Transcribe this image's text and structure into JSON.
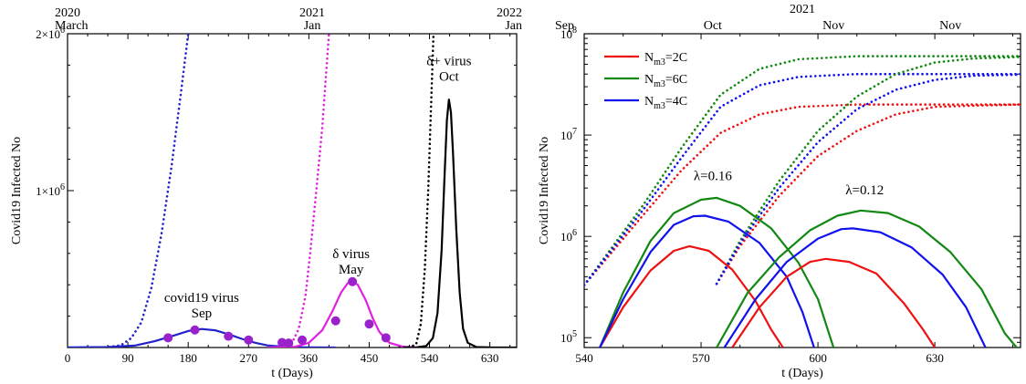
{
  "chart_data": [
    {
      "type": "line",
      "xlabel": "t (Days)",
      "ylabel": "Covid19  Infected  No",
      "xlim": [
        0,
        670
      ],
      "ylim": [
        0,
        2000000
      ],
      "x_ticks": [
        0,
        90,
        180,
        270,
        360,
        450,
        540,
        630
      ],
      "x_tick_labels": [
        "0",
        "90",
        "180",
        "270",
        "360",
        "450",
        "540",
        "630"
      ],
      "y_ticks": [
        1000000,
        2000000
      ],
      "y_tick_labels": [
        "1×10",
        "2×10"
      ],
      "y_tick_exponent": "6",
      "top_axis": [
        {
          "t": 0,
          "year": "2020",
          "month": "March",
          "align": "start"
        },
        {
          "t": 365,
          "year": "2021",
          "month": "Jan",
          "align": "middle"
        },
        {
          "t": 670,
          "year": "2022",
          "month": "Jan",
          "align": "end"
        }
      ],
      "annotations": [
        {
          "id": "covid19",
          "lines": [
            "covid19 virus",
            "Sep"
          ],
          "t": 200,
          "y": 290000
        },
        {
          "id": "delta",
          "lines": [
            "δ virus",
            "May"
          ],
          "t": 423,
          "y": 570000
        },
        {
          "id": "delta-plus",
          "lines": [
            "δ+ virus",
            "Oct"
          ],
          "t": 569,
          "y": 1800000
        }
      ],
      "series": [
        {
          "style": "dotted",
          "color": "#2222cc",
          "points": [
            [
              20,
              1
            ],
            [
              40,
              200
            ],
            [
              60,
              2500
            ],
            [
              80,
              15000
            ],
            [
              95,
              60000
            ],
            [
              110,
              160000
            ],
            [
              125,
              380000
            ],
            [
              140,
              720000
            ],
            [
              155,
              1150000
            ],
            [
              170,
              1650000
            ],
            [
              180,
              2000000
            ]
          ]
        },
        {
          "style": "solid",
          "color": "#2222cc",
          "points": [
            [
              0,
              1200
            ],
            [
              60,
              3000
            ],
            [
              100,
              12000
            ],
            [
              130,
              40000
            ],
            [
              160,
              78000
            ],
            [
              180,
              105000
            ],
            [
              200,
              118000
            ],
            [
              220,
              110000
            ],
            [
              240,
              85000
            ],
            [
              260,
              55000
            ],
            [
              280,
              30000
            ],
            [
              300,
              12000
            ],
            [
              330,
              3000
            ],
            [
              360,
              800
            ],
            [
              400,
              0
            ]
          ]
        },
        {
          "style": "dotted",
          "color": "#e020e0",
          "points": [
            [
              300,
              1
            ],
            [
              320,
              3000
            ],
            [
              335,
              30000
            ],
            [
              345,
              120000
            ],
            [
              355,
              330000
            ],
            [
              362,
              600000
            ],
            [
              370,
              950000
            ],
            [
              380,
              1400000
            ],
            [
              390,
              2000000
            ]
          ]
        },
        {
          "style": "solid",
          "color": "#e020e0",
          "points": [
            [
              300,
              1000
            ],
            [
              340,
              5000
            ],
            [
              360,
              30000
            ],
            [
              380,
              110000
            ],
            [
              395,
              230000
            ],
            [
              408,
              350000
            ],
            [
              418,
              410000
            ],
            [
              425,
              420000
            ],
            [
              433,
              400000
            ],
            [
              445,
              300000
            ],
            [
              455,
              190000
            ],
            [
              465,
              100000
            ],
            [
              480,
              30000
            ],
            [
              500,
              5000
            ],
            [
              520,
              800
            ]
          ]
        },
        {
          "style": "dotted",
          "color": "#000000",
          "points": [
            [
              495,
              1
            ],
            [
              510,
              2000
            ],
            [
              520,
              20000
            ],
            [
              527,
              150000
            ],
            [
              533,
              500000
            ],
            [
              538,
              1000000
            ],
            [
              542,
              1500000
            ],
            [
              546,
              2000000
            ]
          ]
        },
        {
          "style": "solid",
          "color": "#000000",
          "points": [
            [
              500,
              200
            ],
            [
              520,
              1000
            ],
            [
              535,
              10000
            ],
            [
              545,
              60000
            ],
            [
              552,
              220000
            ],
            [
              558,
              620000
            ],
            [
              562,
              1050000
            ],
            [
              566,
              1450000
            ],
            [
              569,
              1580000
            ],
            [
              572,
              1500000
            ],
            [
              575,
              1250000
            ],
            [
              580,
              750000
            ],
            [
              585,
              350000
            ],
            [
              590,
              120000
            ],
            [
              597,
              30000
            ],
            [
              610,
              3000
            ],
            [
              630,
              400
            ],
            [
              670,
              0
            ]
          ]
        }
      ],
      "markers": {
        "color": "#9a22cc",
        "points": [
          [
            150,
            62000
          ],
          [
            190,
            112000
          ],
          [
            240,
            72000
          ],
          [
            270,
            48000
          ],
          [
            320,
            32000
          ],
          [
            330,
            28000
          ],
          [
            350,
            48000
          ],
          [
            400,
            170000
          ],
          [
            425,
            420000
          ],
          [
            450,
            150000
          ],
          [
            475,
            62000
          ]
        ]
      }
    },
    {
      "type": "line",
      "xlabel": "t (Days)",
      "ylabel": "Covid19  Infected  No",
      "xscale": "linear",
      "yscale": "log",
      "xlim": [
        540,
        652
      ],
      "ylim": [
        80000,
        100000000
      ],
      "x_ticks": [
        540,
        570,
        600,
        630
      ],
      "x_tick_labels": [
        "540",
        "570",
        "600",
        "630"
      ],
      "y_ticks": [
        100000,
        1000000,
        10000000,
        100000000
      ],
      "y_tick_labels": [
        "10",
        "10",
        "10",
        "10"
      ],
      "y_tick_exponents": [
        "5",
        "6",
        "7",
        "8"
      ],
      "top_axis_title": "2021",
      "top_axis": [
        {
          "t": 540,
          "month": "Sep",
          "align": "start"
        },
        {
          "t": 573,
          "month": "Oct",
          "align": "middle"
        },
        {
          "t": 604,
          "month": "Nov",
          "align": "middle"
        },
        {
          "t": 634,
          "month": "Nov",
          "align": "middle"
        }
      ],
      "legend": {
        "placement": "top-left",
        "entries": [
          {
            "main": "N",
            "sub": "m3",
            "rest": "=2C",
            "color": "#ee1111"
          },
          {
            "main": "N",
            "sub": "m3",
            "rest": "=6C",
            "color": "#118811"
          },
          {
            "main": "N",
            "sub": "m3",
            "rest": "=4C",
            "color": "#1111ee"
          }
        ]
      },
      "annotations": [
        {
          "text": "λ=0.16",
          "t": 573,
          "y": 3600000
        },
        {
          "text": "λ=0.12",
          "t": 612,
          "y": 2600000
        }
      ],
      "series": [
        {
          "style": "dotted",
          "color": "#ee1111",
          "points": [
            [
              540,
              330000
            ],
            [
              555,
              1600000
            ],
            [
              565,
              4500000
            ],
            [
              575,
              10500000
            ],
            [
              585,
              16000000
            ],
            [
              595,
              19000000
            ],
            [
              610,
              20000000
            ],
            [
              652,
              20000000
            ]
          ]
        },
        {
          "style": "dotted",
          "color": "#118811",
          "points": [
            [
              540,
              330000
            ],
            [
              555,
              2000000
            ],
            [
              565,
              7500000
            ],
            [
              575,
              25000000
            ],
            [
              585,
              45000000
            ],
            [
              595,
              56000000
            ],
            [
              610,
              60000000
            ],
            [
              652,
              60000000
            ]
          ]
        },
        {
          "style": "dotted",
          "color": "#1111ee",
          "points": [
            [
              540,
              330000
            ],
            [
              555,
              1800000
            ],
            [
              565,
              6000000
            ],
            [
              575,
              19000000
            ],
            [
              585,
              31000000
            ],
            [
              595,
              37500000
            ],
            [
              610,
              40000000
            ],
            [
              652,
              40000000
            ]
          ]
        },
        {
          "style": "dotted",
          "color": "#ee1111",
          "points": [
            [
              574,
              340000
            ],
            [
              580,
              800000
            ],
            [
              590,
              2500000
            ],
            [
              600,
              6200000
            ],
            [
              610,
              11000000
            ],
            [
              620,
              16000000
            ],
            [
              630,
              19000000
            ],
            [
              652,
              20000000
            ]
          ]
        },
        {
          "style": "dotted",
          "color": "#118811",
          "points": [
            [
              574,
              340000
            ],
            [
              580,
              900000
            ],
            [
              590,
              3500000
            ],
            [
              600,
              11000000
            ],
            [
              610,
              24000000
            ],
            [
              620,
              40000000
            ],
            [
              630,
              52000000
            ],
            [
              640,
              57000000
            ],
            [
              652,
              59000000
            ]
          ]
        },
        {
          "style": "dotted",
          "color": "#1111ee",
          "points": [
            [
              574,
              340000
            ],
            [
              580,
              850000
            ],
            [
              590,
              3000000
            ],
            [
              600,
              8500000
            ],
            [
              610,
              18000000
            ],
            [
              620,
              28000000
            ],
            [
              630,
              35000000
            ],
            [
              640,
              38500000
            ],
            [
              652,
              39500000
            ]
          ]
        },
        {
          "style": "solid",
          "color": "#ee1111",
          "points": [
            [
              544,
              80000
            ],
            [
              550,
              200000
            ],
            [
              557,
              460000
            ],
            [
              563,
              720000
            ],
            [
              567,
              800000
            ],
            [
              572,
              720000
            ],
            [
              578,
              470000
            ],
            [
              584,
              230000
            ],
            [
              588,
              120000
            ],
            [
              591,
              80000
            ]
          ]
        },
        {
          "style": "solid",
          "color": "#118811",
          "points": [
            [
              544,
              80000
            ],
            [
              550,
              280000
            ],
            [
              557,
              900000
            ],
            [
              563,
              1700000
            ],
            [
              570,
              2300000
            ],
            [
              574,
              2400000
            ],
            [
              580,
              2000000
            ],
            [
              588,
              1200000
            ],
            [
              595,
              550000
            ],
            [
              600,
              240000
            ],
            [
              604,
              80000
            ]
          ]
        },
        {
          "style": "solid",
          "color": "#1111ee",
          "points": [
            [
              544,
              80000
            ],
            [
              550,
              240000
            ],
            [
              557,
              700000
            ],
            [
              563,
              1300000
            ],
            [
              568,
              1580000
            ],
            [
              571,
              1600000
            ],
            [
              577,
              1400000
            ],
            [
              585,
              860000
            ],
            [
              592,
              400000
            ],
            [
              596,
              180000
            ],
            [
              599,
              80000
            ]
          ]
        },
        {
          "style": "solid",
          "color": "#ee1111",
          "points": [
            [
              578,
              80000
            ],
            [
              585,
              200000
            ],
            [
              592,
              400000
            ],
            [
              598,
              560000
            ],
            [
              602,
              600000
            ],
            [
              608,
              560000
            ],
            [
              615,
              430000
            ],
            [
              622,
              220000
            ],
            [
              627,
              120000
            ],
            [
              630,
              80000
            ]
          ]
        },
        {
          "style": "solid",
          "color": "#118811",
          "points": [
            [
              574,
              80000
            ],
            [
              582,
              280000
            ],
            [
              590,
              620000
            ],
            [
              598,
              1150000
            ],
            [
              605,
              1600000
            ],
            [
              611,
              1800000
            ],
            [
              618,
              1700000
            ],
            [
              626,
              1250000
            ],
            [
              634,
              700000
            ],
            [
              642,
              300000
            ],
            [
              648,
              110000
            ],
            [
              651,
              80000
            ]
          ]
        },
        {
          "style": "solid",
          "color": "#1111ee",
          "points": [
            [
              576,
              80000
            ],
            [
              584,
              240000
            ],
            [
              592,
              560000
            ],
            [
              600,
              950000
            ],
            [
              606,
              1180000
            ],
            [
              609,
              1200000
            ],
            [
              616,
              1100000
            ],
            [
              624,
              780000
            ],
            [
              632,
              420000
            ],
            [
              638,
              200000
            ],
            [
              643,
              80000
            ]
          ]
        }
      ]
    }
  ]
}
